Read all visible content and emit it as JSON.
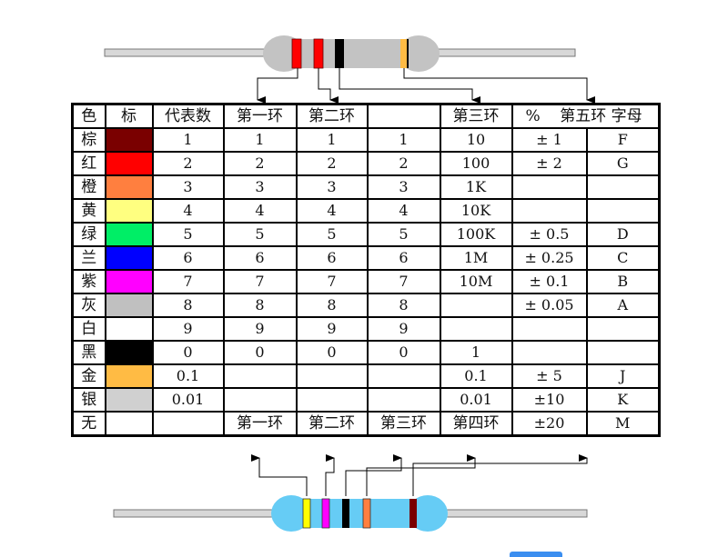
{
  "header": [
    "色",
    "标",
    "代表数",
    "第一环",
    "第二环",
    "",
    "第三环",
    "%",
    "第五环 字母"
  ],
  "rows": [
    {
      "name": "棕",
      "color": "#7a0000",
      "value": "1",
      "b1": "1",
      "b2": "1",
      "b3": "1",
      "mult": "10",
      "tol": "± 1",
      "letter": "F"
    },
    {
      "name": "红",
      "color": "#ff0000",
      "value": "2",
      "b1": "2",
      "b2": "2",
      "b3": "2",
      "mult": "100",
      "tol": "± 2",
      "letter": "G"
    },
    {
      "name": "橙",
      "color": "#ff7f3f",
      "value": "3",
      "b1": "3",
      "b2": "3",
      "b3": "3",
      "mult": "1K",
      "tol": "",
      "letter": ""
    },
    {
      "name": "黄",
      "color": "#ffff80",
      "value": "4",
      "b1": "4",
      "b2": "4",
      "b3": "4",
      "mult": "10K",
      "tol": "",
      "letter": ""
    },
    {
      "name": "绿",
      "color": "#00ee66",
      "value": "5",
      "b1": "5",
      "b2": "5",
      "b3": "5",
      "mult": "100K",
      "tol": "± 0.5",
      "letter": "D"
    },
    {
      "name": "兰",
      "color": "#0000ff",
      "value": "6",
      "b1": "6",
      "b2": "6",
      "b3": "6",
      "mult": "1M",
      "tol": "± 0.25",
      "letter": "C"
    },
    {
      "name": "紫",
      "color": "#ff00ff",
      "value": "7",
      "b1": "7",
      "b2": "7",
      "b3": "7",
      "mult": "10M",
      "tol": "± 0.1",
      "letter": "B"
    },
    {
      "name": "灰",
      "color": "#c0c0c0",
      "value": "8",
      "b1": "8",
      "b2": "8",
      "b3": "8",
      "mult": "",
      "tol": "± 0.05",
      "letter": "A"
    },
    {
      "name": "白",
      "color": "#ffffff",
      "value": "9",
      "b1": "9",
      "b2": "9",
      "b3": "9",
      "mult": "",
      "tol": "",
      "letter": ""
    },
    {
      "name": "黑",
      "color": "#000000",
      "value": "0",
      "b1": "0",
      "b2": "0",
      "b3": "0",
      "mult": "1",
      "tol": "",
      "letter": ""
    },
    {
      "name": "金",
      "color": "#ffbb44",
      "value": "0.1",
      "b1": "",
      "b2": "",
      "b3": "",
      "mult": "0.1",
      "tol": "± 5",
      "letter": "J"
    },
    {
      "name": "银",
      "color": "#d0d0d0",
      "value": "0.01",
      "b1": "",
      "b2": "",
      "b3": "",
      "mult": "0.01",
      "tol": "±10",
      "letter": "K"
    },
    {
      "name": "无",
      "color": "#ffffff",
      "value": "",
      "b1": "第一环",
      "b2": "第二环",
      "b3": "第三环",
      "mult": "第四环",
      "tol": "±20",
      "letter": "M"
    }
  ],
  "colors": {
    "top_resistor_body": "#c3c3c3",
    "bottom_resistor_body": "#66ccf5",
    "lead": "#d8d8d8"
  },
  "top_resistor_bands": [
    "#ff0000",
    "#ff0000",
    "#000000",
    "#ffbb44"
  ],
  "bottom_resistor_bands": [
    "#ffff00",
    "#ff00ff",
    "#000000",
    "#ff7f3f",
    "#7a0000"
  ]
}
